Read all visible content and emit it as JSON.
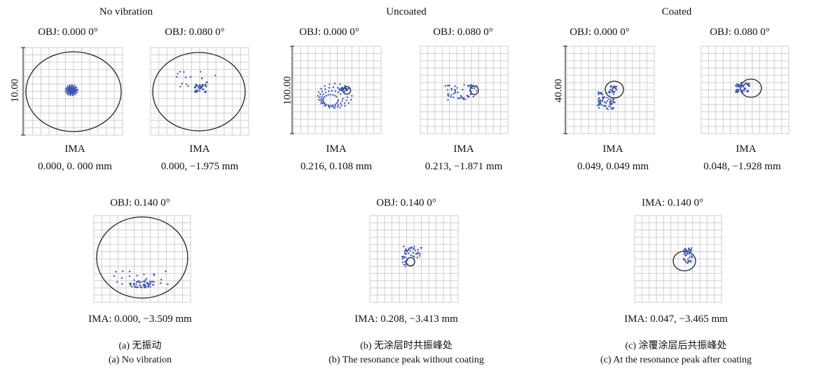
{
  "sections": [
    {
      "key": "a",
      "heading": "No vibration",
      "scale": "10.00",
      "caption_cn": "(a) 无振动",
      "caption_en": "(a) No vibration",
      "plots": [
        {
          "obj": "OBJ: 0.000 0°",
          "ima_title": "IMA",
          "ima_value": "0.000, 0. 000 mm"
        },
        {
          "obj": "OBJ: 0.080 0°",
          "ima_title": "IMA",
          "ima_value": "0.000, −1.975 mm"
        },
        {
          "obj": "OBJ: 0.140 0°",
          "ima_value": "IMA: 0.000, −3.509 mm"
        }
      ]
    },
    {
      "key": "b",
      "heading": "Uncoated",
      "scale": "100.00",
      "caption_cn": "(b) 无涂层时共振峰处",
      "caption_en": "(b) The resonance peak without coating",
      "plots": [
        {
          "obj": "OBJ: 0.000 0°",
          "ima_title": "IMA",
          "ima_value": "0.216, 0.108 mm"
        },
        {
          "obj": "OBJ: 0.080 0°",
          "ima_title": "IMA",
          "ima_value": "0.213, −1.871 mm"
        },
        {
          "obj": "OBJ: 0.140 0°",
          "ima_value": "IMA: 0.208, −3.413 mm"
        }
      ]
    },
    {
      "key": "c",
      "heading": "Coated",
      "scale": "40.00",
      "caption_cn": "(c) 涂覆涂层后共振峰处",
      "caption_en": "(c) At the resonance peak after coating",
      "plots": [
        {
          "obj": "OBJ: 0.000 0°",
          "ima_title": "IMA",
          "ima_value": "0.049, 0.049 mm"
        },
        {
          "obj": "OBJ: 0.080 0°",
          "ima_title": "IMA",
          "ima_value": "0.048, −1.928 mm"
        },
        {
          "obj": "IMA: 0.140 0°",
          "ima_value": "IMA: 0.047, −3.465 mm"
        }
      ]
    }
  ],
  "colors": {
    "grid": "#cfcfcf",
    "spot": "#3a55b4",
    "circle": "#222222"
  }
}
